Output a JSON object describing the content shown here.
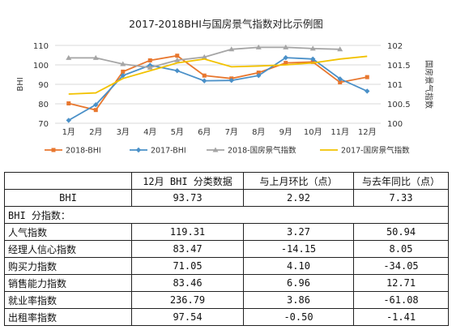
{
  "chart_data": {
    "type": "line",
    "title": "2017-2018BHI与国房景气指数对比示例图",
    "categories": [
      "1月",
      "2月",
      "3月",
      "4月",
      "5月",
      "6月",
      "7月",
      "8月",
      "9月",
      "10月",
      "11月",
      "12月"
    ],
    "y_left": {
      "label": "BHI",
      "ticks": [
        70,
        80,
        90,
        100,
        110
      ],
      "range": [
        70,
        110
      ]
    },
    "y_right": {
      "label": "国房景气指数",
      "ticks": [
        100,
        100.5,
        101,
        101.5,
        102
      ],
      "range": [
        100,
        102
      ]
    },
    "series": [
      {
        "name": "2018-BHI",
        "axis": "left",
        "color": "#E8772E",
        "marker": "square",
        "values": [
          80.2,
          76.8,
          96.5,
          102.3,
          104.7,
          94.5,
          93,
          96,
          101,
          101.5,
          91,
          93.7
        ]
      },
      {
        "name": "2017-BHI",
        "axis": "left",
        "color": "#4A90C8",
        "marker": "diamond",
        "values": [
          71.5,
          79.5,
          94.5,
          99.8,
          97,
          91.8,
          92,
          94.5,
          103.7,
          103,
          92.8,
          86.5
        ]
      },
      {
        "name": "2018-国房景气指数",
        "axis": "right",
        "color": "#A5A5A5",
        "marker": "triangle",
        "values": [
          101.68,
          101.68,
          101.52,
          101.43,
          101.62,
          101.7,
          101.9,
          101.95,
          101.95,
          101.92,
          101.9,
          null
        ]
      },
      {
        "name": "2017-国房景气指数",
        "axis": "right",
        "color": "#F2C200",
        "marker": "none",
        "values": [
          100.75,
          100.78,
          101.15,
          101.35,
          101.55,
          101.65,
          101.45,
          101.47,
          101.5,
          101.55,
          101.65,
          101.72
        ]
      }
    ]
  },
  "table": {
    "headers": [
      "",
      "12月 BHI 分类数据",
      "与上月环比（点）",
      "与去年同比（点）"
    ],
    "bhi_row": {
      "label": "BHI",
      "values": [
        "93.73",
        "2.92",
        "7.33"
      ]
    },
    "section_label": "BHI 分指数：",
    "rows": [
      {
        "label": "人气指数",
        "values": [
          "119.31",
          "3.27",
          "50.94"
        ]
      },
      {
        "label": "经理人信心指数",
        "values": [
          "83.47",
          "-14.15",
          "8.05"
        ]
      },
      {
        "label": "购买力指数",
        "values": [
          "71.05",
          "4.10",
          "-34.05"
        ]
      },
      {
        "label": "销售能力指数",
        "values": [
          "83.46",
          "6.96",
          "12.71"
        ]
      },
      {
        "label": "就业率指数",
        "values": [
          "236.79",
          "3.86",
          "-61.08"
        ]
      },
      {
        "label": "出租率指数",
        "values": [
          "97.54",
          "-0.50",
          "-1.41"
        ]
      }
    ]
  }
}
